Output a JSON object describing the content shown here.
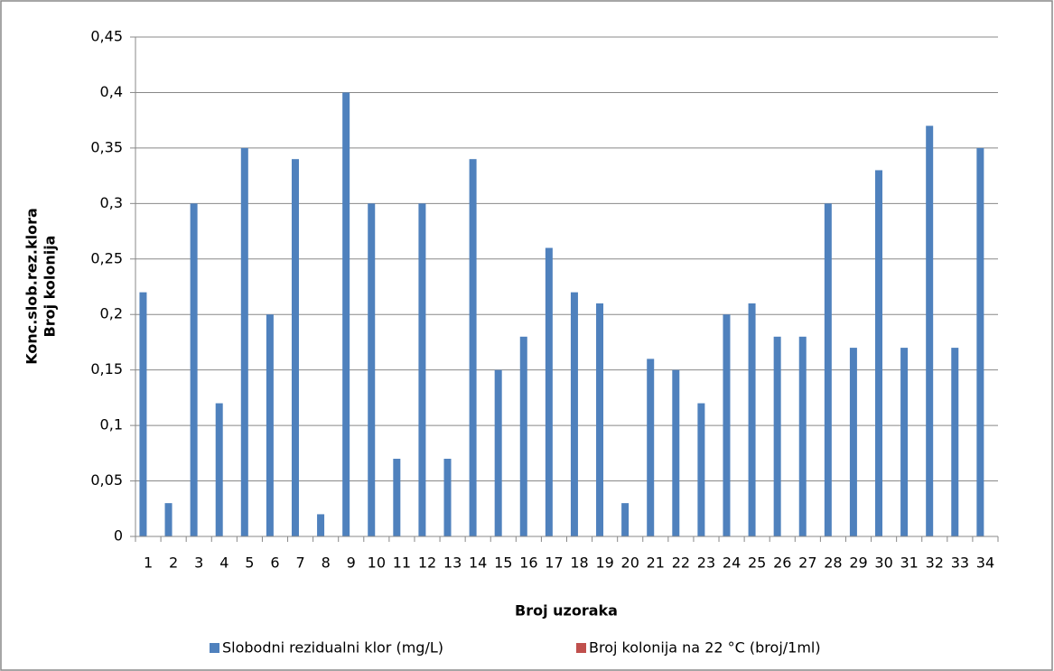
{
  "chart_data": {
    "type": "bar",
    "ylabel": [
      "Konc.slob.rez.klora",
      "Broj kolonija"
    ],
    "xlabel": "Broj uzoraka",
    "categories": [
      "1",
      "2",
      "3",
      "4",
      "5",
      "6",
      "7",
      "8",
      "9",
      "10",
      "11",
      "12",
      "13",
      "14",
      "15",
      "16",
      "17",
      "18",
      "19",
      "20",
      "21",
      "22",
      "23",
      "24",
      "25",
      "26",
      "27",
      "28",
      "29",
      "30",
      "31",
      "32",
      "33",
      "34"
    ],
    "series": [
      {
        "name": "Slobodni rezidualni klor (mg/L)",
        "color": "#4f81bd",
        "values": [
          0.22,
          0.03,
          0.3,
          0.12,
          0.35,
          0.2,
          0.34,
          0.02,
          0.4,
          0.3,
          0.07,
          0.3,
          0.07,
          0.34,
          0.15,
          0.18,
          0.26,
          0.22,
          0.21,
          0.03,
          0.16,
          0.15,
          0.12,
          0.2,
          0.21,
          0.18,
          0.18,
          0.3,
          0.17,
          0.33,
          0.17,
          0.37,
          0.17,
          0.35
        ]
      },
      {
        "name": "Broj kolonija na 22 °C (broj/1ml)",
        "color": "#c0504d",
        "values": [
          0,
          0,
          0,
          0,
          0,
          0,
          0,
          0,
          0,
          0,
          0,
          0,
          0,
          0,
          0,
          0,
          0,
          0,
          0,
          0,
          0,
          0,
          0,
          0,
          0,
          0,
          0,
          0,
          0,
          0,
          0,
          0,
          0,
          0
        ]
      }
    ],
    "ylim": [
      0,
      0.45
    ],
    "yticks": [
      0,
      {
        "value": 0.05,
        "label": "0,05"
      },
      {
        "value": 0.1,
        "label": "0,1"
      },
      {
        "value": 0.15,
        "label": "0,15"
      },
      {
        "value": 0.2,
        "label": "0,2"
      },
      {
        "value": 0.25,
        "label": "0,25"
      },
      {
        "value": 0.3,
        "label": "0,3"
      },
      {
        "value": 0.35,
        "label": "0,35"
      },
      {
        "value": 0.4,
        "label": "0,4"
      },
      {
        "value": 0.45,
        "label": "0,45"
      }
    ],
    "grid": true,
    "legend": "bottom"
  }
}
